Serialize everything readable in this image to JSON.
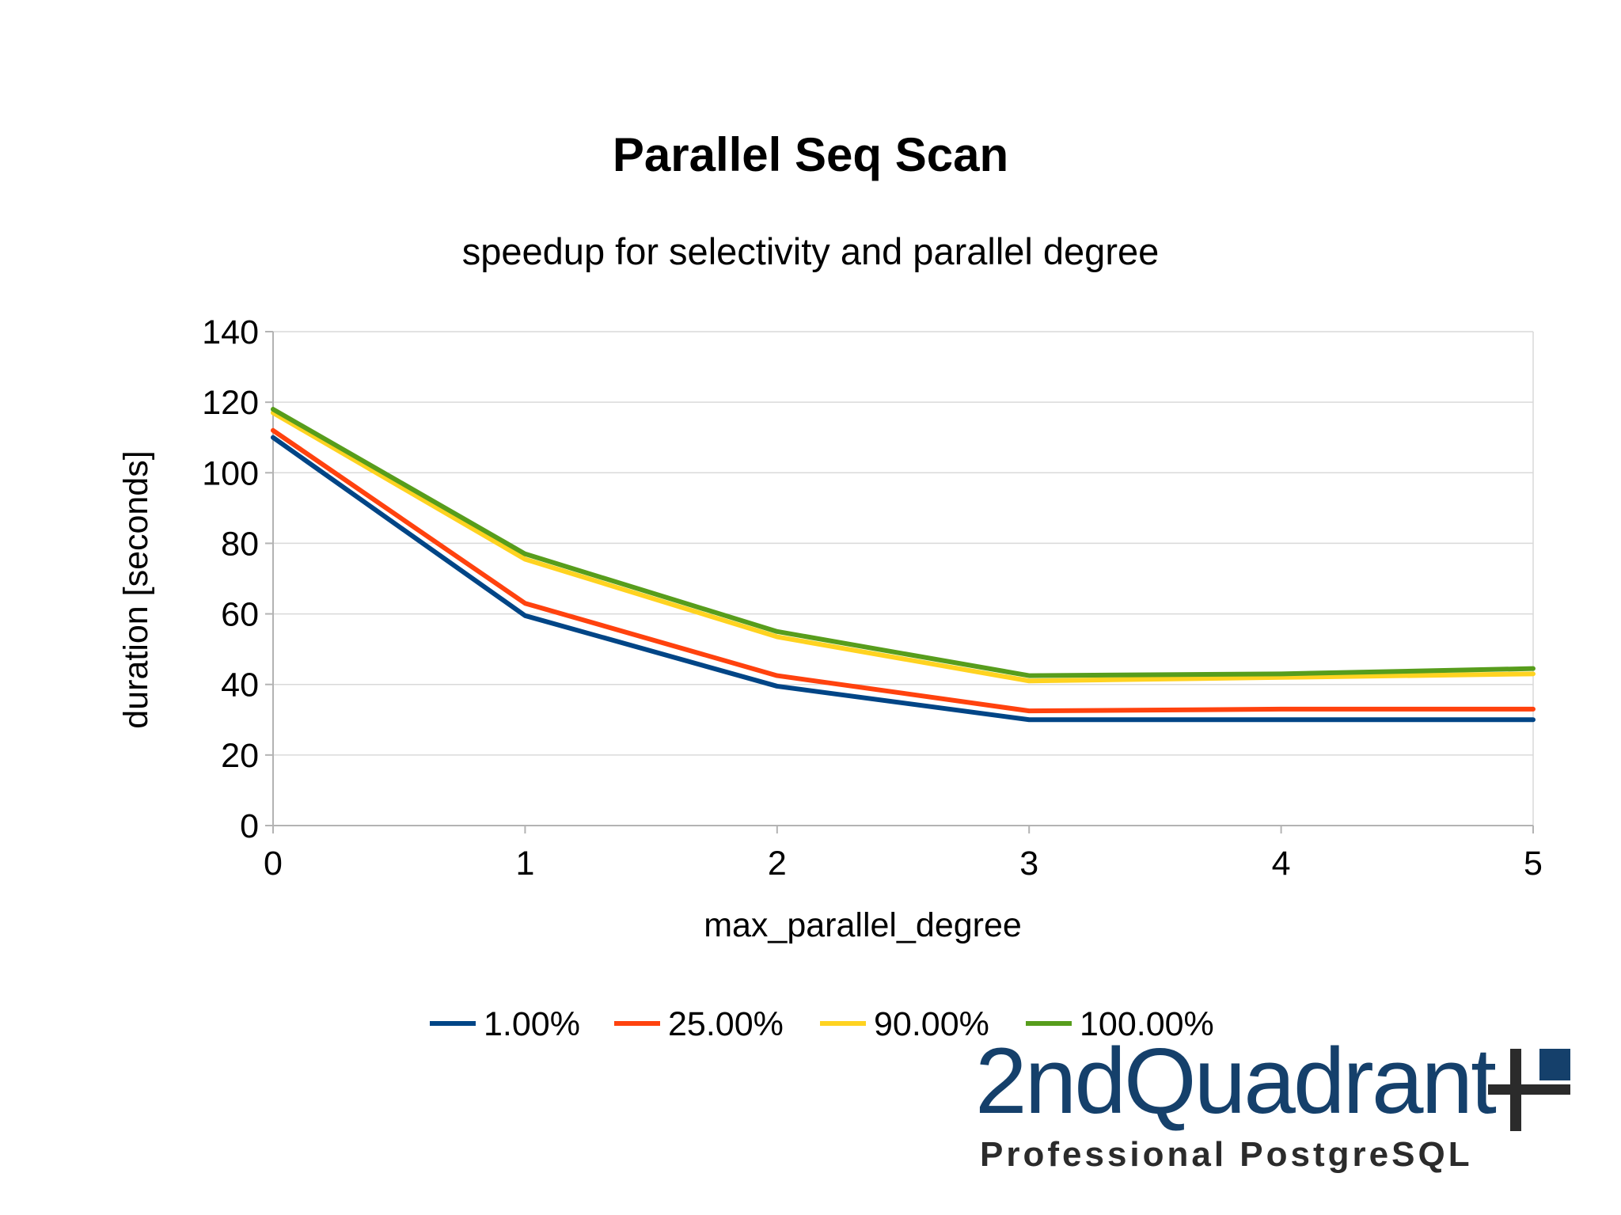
{
  "chart_data": {
    "type": "line",
    "title": "Parallel Seq Scan",
    "subtitle": "speedup for selectivity and parallel degree",
    "xlabel": "max_parallel_degree",
    "ylabel": "duration [seconds]",
    "x": [
      0,
      1,
      2,
      3,
      4,
      5
    ],
    "xlim": [
      0,
      5
    ],
    "ylim": [
      0,
      140
    ],
    "yticks": [
      0,
      20,
      40,
      60,
      80,
      100,
      120,
      140
    ],
    "grid": true,
    "legend": "bottom",
    "series": [
      {
        "name": "1.00%",
        "color": "#004586",
        "values": [
          110,
          59.5,
          39.5,
          30,
          30,
          30
        ]
      },
      {
        "name": "25.00%",
        "color": "#ff420e",
        "values": [
          112,
          63,
          42.5,
          32.5,
          33,
          33
        ]
      },
      {
        "name": "90.00%",
        "color": "#ffd320",
        "values": [
          117,
          75.5,
          53.5,
          41,
          42,
          43
        ]
      },
      {
        "name": "100.00%",
        "color": "#579d1c",
        "values": [
          118,
          77,
          55,
          42.5,
          43,
          44.5
        ]
      }
    ]
  },
  "logo": {
    "name": "2ndQuadrant",
    "tagline": "Professional PostgreSQL",
    "primary_color": "#15406b",
    "secondary_color": "#2b2b2b"
  }
}
